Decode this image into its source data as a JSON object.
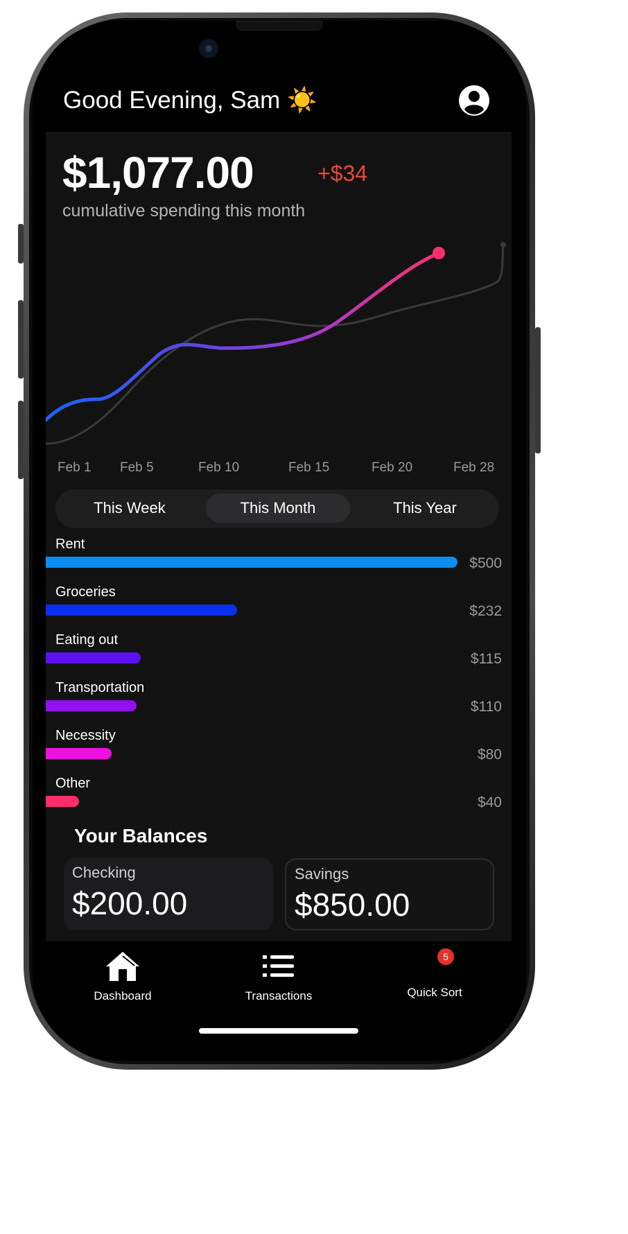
{
  "header": {
    "greeting": "Good Evening, Sam",
    "greeting_emoji": "☀️",
    "profile_icon": "person-circle-icon"
  },
  "summary": {
    "total": "$1,077.00",
    "delta": "+$34",
    "subtitle": "cumulative spending this month"
  },
  "chart_data": {
    "type": "line",
    "x_labels": [
      "Feb 1",
      "Feb 5",
      "Feb 10",
      "Feb 15",
      "Feb 20",
      "Feb 28"
    ],
    "series": [
      {
        "name": "",
        "color_start": "#1565ff",
        "color_end": "#ff2f6e"
      },
      {
        "name": "",
        "color": "#3a3a3a"
      }
    ],
    "grid": false,
    "legend": "none"
  },
  "range_selector": {
    "options": [
      "This Week",
      "This Month",
      "This Year"
    ],
    "selected": "This Month"
  },
  "categories": [
    {
      "label": "Rent",
      "value": "$500",
      "amount": 500,
      "color": "#0a8ef5"
    },
    {
      "label": "Groceries",
      "value": "$232",
      "amount": 232,
      "color": "#0b2ff0"
    },
    {
      "label": "Eating out",
      "value": "$115",
      "amount": 115,
      "color": "#5c10f0"
    },
    {
      "label": "Transportation",
      "value": "$110",
      "amount": 110,
      "color": "#9010f0"
    },
    {
      "label": "Necessity",
      "value": "$80",
      "amount": 80,
      "color": "#ef10e0"
    },
    {
      "label": "Other",
      "value": "$40",
      "amount": 40,
      "color": "#ff2d6a"
    }
  ],
  "balances": {
    "title": "Your Balances",
    "checking": {
      "label": "Checking",
      "value": "$200.00"
    },
    "savings": {
      "label": "Savings",
      "value": "$850.00"
    }
  },
  "tabbar": {
    "dashboard": {
      "label": "Dashboard",
      "icon": "house-icon"
    },
    "transactions": {
      "label": "Transactions",
      "icon": "list-icon"
    },
    "quicksort": {
      "label": "Quick Sort",
      "badge": "5"
    }
  }
}
